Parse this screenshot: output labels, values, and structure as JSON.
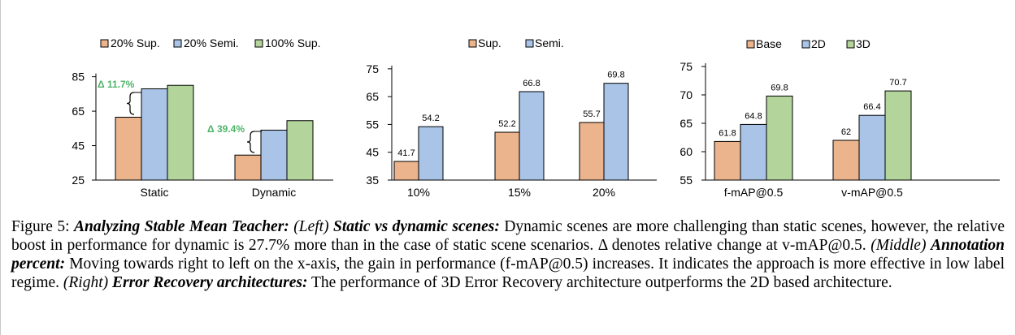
{
  "colors": {
    "sup": "#EBB48C",
    "semi": "#A9C4E6",
    "full": "#B3D49A",
    "annotation": "#4FB46A",
    "stroke": "#000000"
  },
  "chart_data": [
    {
      "type": "bar",
      "title": "",
      "xlabel": "",
      "ylabel": "",
      "categories": [
        "Static",
        "Dynamic"
      ],
      "series": [
        {
          "name": "20% Sup.",
          "values": [
            61.5,
            39.5
          ]
        },
        {
          "name": "20% Semi.",
          "values": [
            78,
            54
          ]
        },
        {
          "name": "100% Sup.",
          "values": [
            80,
            59.5
          ]
        }
      ],
      "yticks": [
        25,
        45,
        65,
        85
      ],
      "ylim": [
        25,
        90
      ],
      "legend": "top",
      "annotations": [
        "Δ 11.7%",
        "Δ 39.4%"
      ]
    },
    {
      "type": "bar",
      "title": "",
      "xlabel": "",
      "ylabel": "",
      "categories": [
        "10%",
        "15%",
        "20%"
      ],
      "series": [
        {
          "name": "Sup.",
          "values": [
            41.7,
            52.2,
            55.7
          ]
        },
        {
          "name": "Semi.",
          "values": [
            54.2,
            66.8,
            69.8
          ]
        }
      ],
      "data_labels": [
        [
          "41.7",
          "52.2",
          "55.7"
        ],
        [
          "54.2",
          "66.8",
          "69.8"
        ]
      ],
      "yticks": [
        35,
        45,
        55,
        65,
        75
      ],
      "ylim": [
        35,
        77
      ],
      "legend": "top"
    },
    {
      "type": "bar",
      "title": "",
      "xlabel": "",
      "ylabel": "",
      "categories": [
        "f-mAP@0.5",
        "v-mAP@0.5"
      ],
      "series": [
        {
          "name": "Base",
          "values": [
            61.8,
            62
          ]
        },
        {
          "name": "2D",
          "values": [
            64.8,
            66.4
          ]
        },
        {
          "name": "3D",
          "values": [
            69.8,
            70.7
          ]
        }
      ],
      "data_labels": [
        [
          "61.8",
          "62"
        ],
        [
          "64.8",
          "66.4"
        ],
        [
          "69.8",
          "70.7"
        ]
      ],
      "yticks": [
        55,
        60,
        65,
        70,
        75
      ],
      "ylim": [
        55,
        76
      ],
      "legend": "top"
    }
  ],
  "caption": {
    "prefix": "Figure 5: ",
    "title": "Analyzing Stable Mean Teacher:",
    "left_tag": "(Left)",
    "left_head": "Static vs dynamic scenes:",
    "left_text": "Dynamic scenes are more challenging than static scenes, however, the relative boost in performance for dynamic is 27.7% more than in the case of static scene scenarios. Δ denotes relative change at v-mAP@0.5.",
    "middle_tag": "(Middle)",
    "middle_head": "Annotation percent:",
    "middle_text": "Moving towards right to left on the x-axis, the gain in performance (f-mAP@0.5) increases. It indicates the approach is more effective in low label regime.",
    "right_tag": "(Right)",
    "right_head": "Error Recovery architectures:",
    "right_text": "The performance of 3D Error Recovery architecture outperforms the 2D based architecture."
  }
}
